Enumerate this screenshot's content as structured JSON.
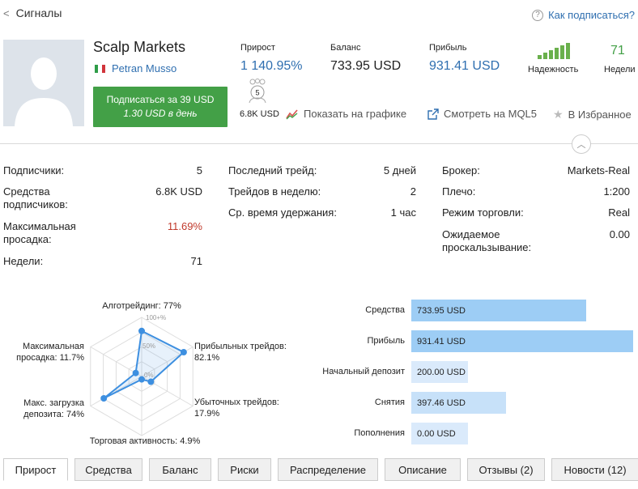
{
  "header": {
    "back_label": "Сигналы",
    "help_label": "Как подписаться?"
  },
  "signal": {
    "name": "Scalp Markets",
    "author": "Petran Musso",
    "subscribe_line1": "Подписаться за 39 USD",
    "subscribe_line2": "1.30 USD в день"
  },
  "stats": {
    "growth": {
      "label": "Прирост",
      "value": "1 140.95%"
    },
    "balance": {
      "label": "Баланс",
      "value": "733.95 USD"
    },
    "profit": {
      "label": "Прибыль",
      "value": "931.41 USD"
    },
    "reliability": {
      "label": "Надежность"
    },
    "weeks": {
      "label": "Недели",
      "value": "71"
    }
  },
  "subscribers_badge": {
    "count": "5",
    "funds": "6.8K USD"
  },
  "actions": {
    "chart": "Показать на графике",
    "mql5": "Смотреть на MQL5",
    "favorites": "В Избранное"
  },
  "details": {
    "col1": [
      {
        "k": "Подписчики:",
        "v": "5"
      },
      {
        "k": "Средства подписчиков:",
        "v": "6.8K USD"
      },
      {
        "k": "Максимальная просадка:",
        "v": "11.69%"
      },
      {
        "k": "Недели:",
        "v": "71"
      }
    ],
    "col2": [
      {
        "k": "Последний трейд:",
        "v": "5 дней"
      },
      {
        "k": "Трейдов в неделю:",
        "v": "2"
      },
      {
        "k": "Ср. время удержания:",
        "v": "1 час"
      }
    ],
    "col3": [
      {
        "k": "Брокер:",
        "v": "Markets-Real"
      },
      {
        "k": "Плечо:",
        "v": "1:200"
      },
      {
        "k": "Режим торговли:",
        "v": "Real"
      },
      {
        "k": "Ожидаемое проскальзывание:",
        "v": "0.00"
      }
    ]
  },
  "radar": {
    "axes": [
      "Алготрейдинг: 77%",
      "Прибыльных трейдов: 82.1%",
      "Убыточных трейдов: 17.9%",
      "Торговая активность: 4.9%",
      "Макс. загрузка депозита: 74%",
      "Максимальная просадка: 11.7%"
    ],
    "values": [
      0.77,
      0.821,
      0.179,
      0.049,
      0.74,
      0.117
    ],
    "ticks": [
      "100+%",
      "50%",
      "0%"
    ],
    "color": "#3d8fe0"
  },
  "money": {
    "max": 931.41,
    "items": [
      {
        "label": "Средства",
        "value": 733.95,
        "text": "733.95 USD",
        "color": "#9dcdf5"
      },
      {
        "label": "Прибыль",
        "value": 931.41,
        "text": "931.41 USD",
        "color": "#9dcdf5"
      },
      {
        "label": "Начальный депозит",
        "value": 200,
        "text": "200.00 USD",
        "color": "#daeafb"
      },
      {
        "label": "Снятия",
        "value": 397.46,
        "text": "397.46 USD",
        "color": "#c7e1f9"
      },
      {
        "label": "Пополнения",
        "value": 0,
        "text": "0.00 USD",
        "color": "#daeafb"
      }
    ]
  },
  "tabs": [
    "Прирост",
    "Средства",
    "Баланс",
    "Риски",
    "Распределение",
    "Описание",
    "Отзывы (2)",
    "Новости (12)"
  ]
}
